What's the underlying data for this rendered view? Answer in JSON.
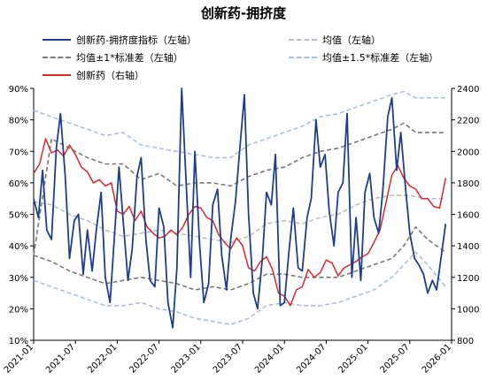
{
  "chart_data": {
    "type": "line",
    "title": "创新药-拥挤度",
    "x": [
      "2021-01",
      "2021-07",
      "2022-01",
      "2022-07",
      "2023-01",
      "2023-07",
      "2024-01",
      "2024-07",
      "2025-01",
      "2025-07",
      "2026-01"
    ],
    "y_left": {
      "ticks": [
        "90%",
        "80%",
        "70%",
        "60%",
        "50%",
        "40%",
        "30%",
        "20%",
        "10%"
      ],
      "ylim": [
        0.1,
        0.9
      ]
    },
    "y_right": {
      "ticks": [
        "2400",
        "2200",
        "2000",
        "1800",
        "1600",
        "1400",
        "1200",
        "1000",
        "800"
      ],
      "ylim": [
        800,
        2400
      ]
    },
    "legend_position": "top",
    "grid": false,
    "series": [
      {
        "name": "创新药-拥挤度指标（左轴）",
        "axis": "left",
        "color": "#1f3f8c",
        "style": "solid",
        "points": [
          [
            0,
            0.55
          ],
          [
            0.8,
            0.49
          ],
          [
            1.5,
            0.64
          ],
          [
            2.2,
            0.45
          ],
          [
            3,
            0.42
          ],
          [
            3.8,
            0.71
          ],
          [
            4.5,
            0.82
          ],
          [
            5.3,
            0.62
          ],
          [
            6,
            0.36
          ],
          [
            6.8,
            0.48
          ],
          [
            7.5,
            0.5
          ],
          [
            8.3,
            0.31
          ],
          [
            9,
            0.45
          ],
          [
            9.8,
            0.32
          ],
          [
            10.5,
            0.45
          ],
          [
            11.3,
            0.57
          ],
          [
            12,
            0.3
          ],
          [
            12.8,
            0.22
          ],
          [
            13.5,
            0.42
          ],
          [
            14.3,
            0.65
          ],
          [
            15,
            0.48
          ],
          [
            15.8,
            0.29
          ],
          [
            16.5,
            0.39
          ],
          [
            17.3,
            0.62
          ],
          [
            18,
            0.68
          ],
          [
            18.8,
            0.42
          ],
          [
            19.5,
            0.29
          ],
          [
            20.3,
            0.27
          ],
          [
            21,
            0.52
          ],
          [
            21.8,
            0.46
          ],
          [
            22.5,
            0.22
          ],
          [
            23.3,
            0.14
          ],
          [
            24,
            0.33
          ],
          [
            24.8,
            0.9
          ],
          [
            25.5,
            0.62
          ],
          [
            26.3,
            0.3
          ],
          [
            27,
            0.7
          ],
          [
            27.8,
            0.4
          ],
          [
            28.5,
            0.22
          ],
          [
            29.3,
            0.28
          ],
          [
            30,
            0.53
          ],
          [
            30.8,
            0.58
          ],
          [
            31.5,
            0.37
          ],
          [
            32.3,
            0.26
          ],
          [
            33,
            0.42
          ],
          [
            33.8,
            0.54
          ],
          [
            34.5,
            0.7
          ],
          [
            35.3,
            0.88
          ],
          [
            36,
            0.5
          ],
          [
            36.8,
            0.25
          ],
          [
            37.5,
            0.2
          ],
          [
            38.3,
            0.36
          ],
          [
            39,
            0.57
          ],
          [
            39.8,
            0.53
          ],
          [
            40.5,
            0.69
          ],
          [
            41.3,
            0.21
          ],
          [
            42,
            0.22
          ],
          [
            42.8,
            0.39
          ],
          [
            43.5,
            0.52
          ],
          [
            44.3,
            0.33
          ],
          [
            45,
            0.32
          ],
          [
            45.8,
            0.49
          ],
          [
            46.5,
            0.55
          ],
          [
            47.3,
            0.8
          ],
          [
            48,
            0.65
          ],
          [
            48.8,
            0.69
          ],
          [
            49.5,
            0.51
          ],
          [
            50.3,
            0.4
          ],
          [
            51,
            0.57
          ],
          [
            51.8,
            0.6
          ],
          [
            52.5,
            0.82
          ],
          [
            53.3,
            0.3
          ],
          [
            54,
            0.49
          ],
          [
            54.8,
            0.29
          ],
          [
            55.5,
            0.57
          ],
          [
            56.3,
            0.63
          ],
          [
            57,
            0.49
          ],
          [
            57.8,
            0.44
          ],
          [
            58.5,
            0.58
          ],
          [
            59.3,
            0.81
          ],
          [
            60,
            0.87
          ],
          [
            60.8,
            0.64
          ],
          [
            61.5,
            0.76
          ],
          [
            62.3,
            0.58
          ],
          [
            63,
            0.44
          ],
          [
            63.8,
            0.36
          ],
          [
            64.5,
            0.34
          ],
          [
            65.3,
            0.31
          ],
          [
            66,
            0.25
          ],
          [
            66.8,
            0.29
          ],
          [
            67.5,
            0.26
          ],
          [
            68.3,
            0.37
          ],
          [
            69,
            0.47
          ]
        ]
      },
      {
        "name": "均值（左轴）",
        "axis": "left",
        "color": "#b8bec9",
        "style": "dashed",
        "points": [
          [
            0,
            0.54
          ],
          [
            3,
            0.53
          ],
          [
            6,
            0.5
          ],
          [
            9,
            0.48
          ],
          [
            12,
            0.45
          ],
          [
            15,
            0.43
          ],
          [
            18,
            0.44
          ],
          [
            21,
            0.45
          ],
          [
            24,
            0.44
          ],
          [
            27,
            0.43
          ],
          [
            30,
            0.42
          ],
          [
            33,
            0.41
          ],
          [
            36,
            0.43
          ],
          [
            39,
            0.47
          ],
          [
            42,
            0.48
          ],
          [
            45,
            0.47
          ],
          [
            48,
            0.49
          ],
          [
            51,
            0.5
          ],
          [
            54,
            0.53
          ],
          [
            57,
            0.55
          ],
          [
            60,
            0.56
          ],
          [
            63,
            0.56
          ],
          [
            66,
            0.55
          ],
          [
            69,
            0.55
          ]
        ]
      },
      {
        "name": "均值±1*标准差（左轴）",
        "axis": "left",
        "color": "#7a7a7a",
        "style": "dashed",
        "points": [
          [
            0,
            0.37
          ],
          [
            3,
            0.74
          ],
          [
            6,
            0.71
          ],
          [
            9,
            0.68
          ],
          [
            12,
            0.66
          ],
          [
            15,
            0.66
          ],
          [
            18,
            0.61
          ],
          [
            21,
            0.63
          ],
          [
            24,
            0.59
          ],
          [
            27,
            0.6
          ],
          [
            30,
            0.6
          ],
          [
            33,
            0.59
          ],
          [
            36,
            0.62
          ],
          [
            39,
            0.64
          ],
          [
            42,
            0.65
          ],
          [
            45,
            0.68
          ],
          [
            48,
            0.7
          ],
          [
            51,
            0.71
          ],
          [
            54,
            0.73
          ],
          [
            57,
            0.75
          ],
          [
            60,
            0.77
          ],
          [
            62,
            0.79
          ],
          [
            64,
            0.76
          ],
          [
            69,
            0.76
          ]
        ],
        "points_lower": [
          [
            0,
            0.37
          ],
          [
            3,
            0.35
          ],
          [
            6,
            0.32
          ],
          [
            9,
            0.3
          ],
          [
            12,
            0.28
          ],
          [
            15,
            0.29
          ],
          [
            18,
            0.3
          ],
          [
            21,
            0.29
          ],
          [
            24,
            0.28
          ],
          [
            27,
            0.26
          ],
          [
            30,
            0.27
          ],
          [
            33,
            0.26
          ],
          [
            36,
            0.28
          ],
          [
            39,
            0.31
          ],
          [
            42,
            0.31
          ],
          [
            45,
            0.3
          ],
          [
            48,
            0.3
          ],
          [
            51,
            0.3
          ],
          [
            54,
            0.32
          ],
          [
            57,
            0.34
          ],
          [
            60,
            0.36
          ],
          [
            62,
            0.4
          ],
          [
            64,
            0.46
          ],
          [
            66,
            0.42
          ],
          [
            69,
            0.38
          ]
        ]
      },
      {
        "name": "均值±1.5*标准差（左轴）",
        "axis": "left",
        "color": "#a9c0e3",
        "style": "dashed",
        "points": [
          [
            0,
            0.83
          ],
          [
            3,
            0.81
          ],
          [
            6,
            0.79
          ],
          [
            9,
            0.77
          ],
          [
            12,
            0.75
          ],
          [
            15,
            0.76
          ],
          [
            18,
            0.72
          ],
          [
            21,
            0.71
          ],
          [
            24,
            0.7
          ],
          [
            27,
            0.69
          ],
          [
            30,
            0.68
          ],
          [
            33,
            0.68
          ],
          [
            36,
            0.72
          ],
          [
            39,
            0.74
          ],
          [
            42,
            0.76
          ],
          [
            45,
            0.78
          ],
          [
            48,
            0.81
          ],
          [
            51,
            0.82
          ],
          [
            54,
            0.84
          ],
          [
            57,
            0.86
          ],
          [
            60,
            0.88
          ],
          [
            62,
            0.89
          ],
          [
            64,
            0.87
          ],
          [
            69,
            0.87
          ]
        ],
        "points_lower": [
          [
            0,
            0.29
          ],
          [
            3,
            0.27
          ],
          [
            6,
            0.25
          ],
          [
            9,
            0.23
          ],
          [
            12,
            0.21
          ],
          [
            15,
            0.21
          ],
          [
            18,
            0.22
          ],
          [
            21,
            0.2
          ],
          [
            24,
            0.19
          ],
          [
            27,
            0.17
          ],
          [
            30,
            0.16
          ],
          [
            33,
            0.15
          ],
          [
            36,
            0.17
          ],
          [
            39,
            0.21
          ],
          [
            42,
            0.22
          ],
          [
            45,
            0.21
          ],
          [
            48,
            0.21
          ],
          [
            51,
            0.22
          ],
          [
            54,
            0.24
          ],
          [
            57,
            0.26
          ],
          [
            60,
            0.3
          ],
          [
            62,
            0.34
          ],
          [
            64,
            0.38
          ],
          [
            66,
            0.34
          ],
          [
            69,
            0.27
          ]
        ]
      },
      {
        "name": "创新药（右轴）",
        "axis": "right",
        "color": "#e0262a",
        "style": "solid",
        "points": [
          [
            0,
            1860
          ],
          [
            1,
            1920
          ],
          [
            2,
            2080
          ],
          [
            3,
            1990
          ],
          [
            4,
            2010
          ],
          [
            5,
            1970
          ],
          [
            6,
            2040
          ],
          [
            7,
            1980
          ],
          [
            8,
            1900
          ],
          [
            9,
            1870
          ],
          [
            10,
            1800
          ],
          [
            11,
            1820
          ],
          [
            12,
            1780
          ],
          [
            13,
            1800
          ],
          [
            14,
            1620
          ],
          [
            15,
            1600
          ],
          [
            16,
            1650
          ],
          [
            17,
            1560
          ],
          [
            18,
            1620
          ],
          [
            19,
            1520
          ],
          [
            20,
            1480
          ],
          [
            21,
            1450
          ],
          [
            22,
            1460
          ],
          [
            23,
            1500
          ],
          [
            24,
            1470
          ],
          [
            25,
            1520
          ],
          [
            26,
            1600
          ],
          [
            27,
            1650
          ],
          [
            28,
            1640
          ],
          [
            29,
            1580
          ],
          [
            30,
            1560
          ],
          [
            31,
            1470
          ],
          [
            32,
            1420
          ],
          [
            33,
            1380
          ],
          [
            34,
            1450
          ],
          [
            35,
            1400
          ],
          [
            36,
            1260
          ],
          [
            37,
            1240
          ],
          [
            38,
            1300
          ],
          [
            39,
            1330
          ],
          [
            40,
            1250
          ],
          [
            41,
            1100
          ],
          [
            42,
            1080
          ],
          [
            43,
            1020
          ],
          [
            44,
            1120
          ],
          [
            45,
            1140
          ],
          [
            46,
            1250
          ],
          [
            47,
            1200
          ],
          [
            48,
            1230
          ],
          [
            49,
            1310
          ],
          [
            50,
            1290
          ],
          [
            51,
            1210
          ],
          [
            52,
            1260
          ],
          [
            53,
            1280
          ],
          [
            54,
            1300
          ],
          [
            55,
            1330
          ],
          [
            56,
            1350
          ],
          [
            57,
            1420
          ],
          [
            58,
            1500
          ],
          [
            59,
            1670
          ],
          [
            60,
            1850
          ],
          [
            61,
            1910
          ],
          [
            62,
            1830
          ],
          [
            63,
            1780
          ],
          [
            64,
            1760
          ],
          [
            65,
            1700
          ],
          [
            66,
            1700
          ],
          [
            67,
            1650
          ],
          [
            68,
            1640
          ],
          [
            69,
            1830
          ]
        ]
      }
    ]
  },
  "colors": {
    "left_axis": "#000000",
    "right_axis": "#000000"
  }
}
